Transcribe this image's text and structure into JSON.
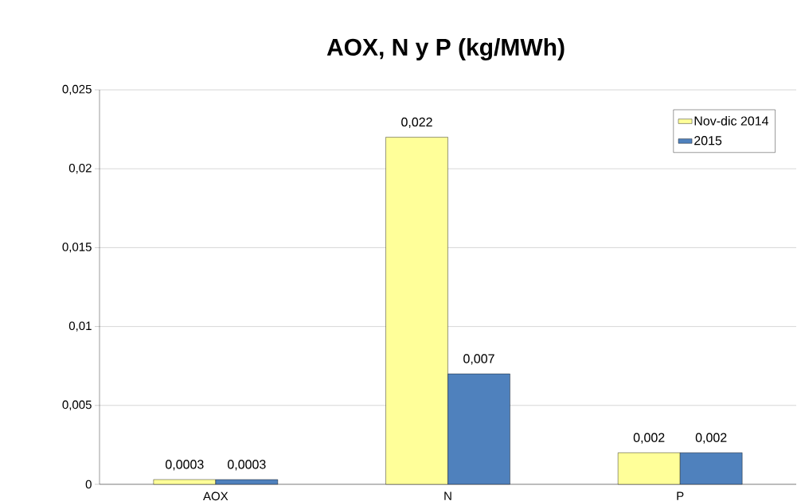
{
  "chart_data": {
    "type": "bar",
    "title": "AOX, N y P (kg/MWh)",
    "categories": [
      "AOX",
      "N",
      "P"
    ],
    "series": [
      {
        "name": "Nov-dic 2014",
        "color": "#ffff99",
        "values": [
          0.0003,
          0.022,
          0.002
        ],
        "value_labels": [
          "0,0003",
          "0,022",
          "0,002"
        ]
      },
      {
        "name": "2015",
        "color": "#4f81bd",
        "values": [
          0.0003,
          0.007,
          0.002
        ],
        "value_labels": [
          "0,0003",
          "0,007",
          "0,002"
        ]
      }
    ],
    "ylim": [
      0,
      0.025
    ],
    "yticks": [
      0,
      {
        "value": 0.005,
        "label": "0,005"
      },
      {
        "value": 0.01,
        "label": "0,01"
      },
      {
        "value": 0.015,
        "label": "0,015"
      },
      {
        "value": 0.02,
        "label": "0,02"
      },
      {
        "value": 0.025,
        "label": "0,025"
      }
    ],
    "grid": "y",
    "legend": "top right"
  }
}
